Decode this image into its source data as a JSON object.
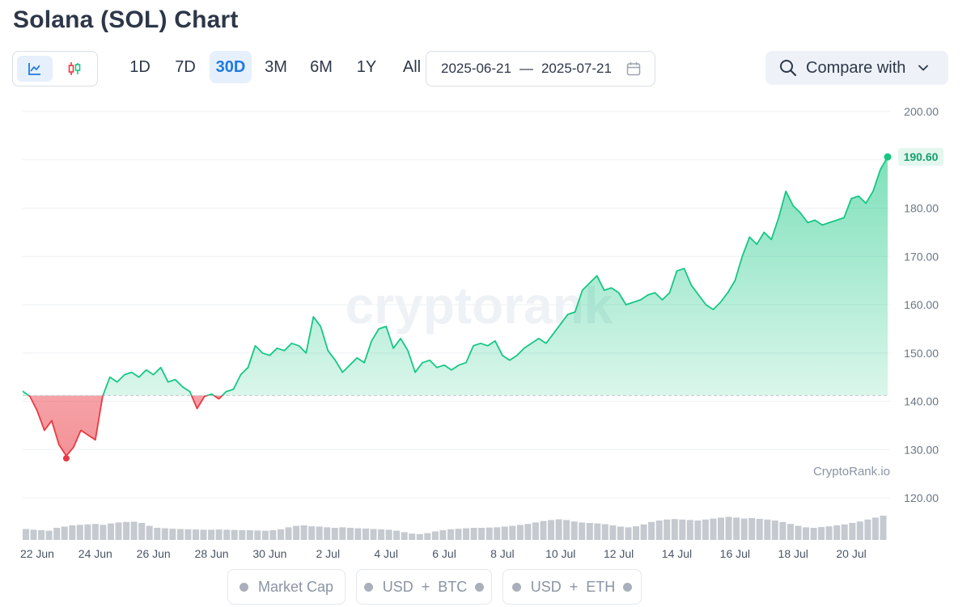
{
  "page": {
    "title": "Solana (SOL) Chart"
  },
  "toolbar": {
    "chart_types": [
      {
        "icon": "line-chart-icon",
        "active": true
      },
      {
        "icon": "candlestick-icon",
        "active": false
      }
    ],
    "ranges": [
      "1D",
      "7D",
      "30D",
      "3M",
      "6M",
      "1Y",
      "All"
    ],
    "active_range": "30D",
    "date_from": "2025-06-21",
    "date_separator": "—",
    "date_to": "2025-07-21",
    "compare_label": "Compare with"
  },
  "colors": {
    "up": "#16c784",
    "down": "#ea3943",
    "accent": "#1f7ae0",
    "volume": "#c5c9d0"
  },
  "watermark": "cryptorank",
  "source_label": "CryptoRank.io",
  "legend": {
    "market_cap": "Market Cap",
    "usd": "USD",
    "plus": "+",
    "btc": "BTC",
    "eth": "ETH"
  },
  "chart_data": {
    "type": "area",
    "title": "Solana (SOL) Chart",
    "ylim": [
      120,
      200
    ],
    "y_ticks": [
      "200.00",
      "190.00",
      "180.00",
      "170.00",
      "160.00",
      "150.00",
      "140.00",
      "130.00",
      "120.00"
    ],
    "x_ticks": [
      "22 Jun",
      "24 Jun",
      "26 Jun",
      "28 Jun",
      "30 Jun",
      "2 Jul",
      "4 Jul",
      "6 Jul",
      "8 Jul",
      "10 Jul",
      "12 Jul",
      "14 Jul",
      "16 Jul",
      "18 Jul",
      "20 Jul"
    ],
    "baseline": 141.2,
    "last_value": 190.6,
    "last_label": "190.60",
    "low_value": 128.7,
    "series": [
      {
        "values": [
          {
            "x": "2025-06-21 12:00",
            "y": 142.1
          },
          {
            "x": "2025-06-21 18:00",
            "y": 141.0
          },
          {
            "x": "2025-06-22 00:00",
            "y": 138.0
          },
          {
            "x": "2025-06-22 06:00",
            "y": 134.0
          },
          {
            "x": "2025-06-22 12:00",
            "y": 136.0
          },
          {
            "x": "2025-06-22 18:00",
            "y": 131.0
          },
          {
            "x": "2025-06-23 00:00",
            "y": 128.7
          },
          {
            "x": "2025-06-23 06:00",
            "y": 130.5
          },
          {
            "x": "2025-06-23 12:00",
            "y": 134.0
          },
          {
            "x": "2025-06-23 18:00",
            "y": 133.0
          },
          {
            "x": "2025-06-24 00:00",
            "y": 132.0
          },
          {
            "x": "2025-06-24 06:00",
            "y": 141.0
          },
          {
            "x": "2025-06-24 12:00",
            "y": 145.0
          },
          {
            "x": "2025-06-24 18:00",
            "y": 144.0
          },
          {
            "x": "2025-06-25 00:00",
            "y": 145.5
          },
          {
            "x": "2025-06-25 06:00",
            "y": 146.0
          },
          {
            "x": "2025-06-25 12:00",
            "y": 145.0
          },
          {
            "x": "2025-06-25 18:00",
            "y": 146.5
          },
          {
            "x": "2025-06-26 00:00",
            "y": 145.5
          },
          {
            "x": "2025-06-26 06:00",
            "y": 147.0
          },
          {
            "x": "2025-06-26 12:00",
            "y": 144.0
          },
          {
            "x": "2025-06-26 18:00",
            "y": 144.5
          },
          {
            "x": "2025-06-27 00:00",
            "y": 143.0
          },
          {
            "x": "2025-06-27 06:00",
            "y": 142.0
          },
          {
            "x": "2025-06-27 12:00",
            "y": 138.5
          },
          {
            "x": "2025-06-27 18:00",
            "y": 141.0
          },
          {
            "x": "2025-06-28 00:00",
            "y": 141.5
          },
          {
            "x": "2025-06-28 06:00",
            "y": 140.5
          },
          {
            "x": "2025-06-28 12:00",
            "y": 142.0
          },
          {
            "x": "2025-06-28 18:00",
            "y": 142.5
          },
          {
            "x": "2025-06-29 00:00",
            "y": 145.5
          },
          {
            "x": "2025-06-29 06:00",
            "y": 147.0
          },
          {
            "x": "2025-06-29 12:00",
            "y": 151.5
          },
          {
            "x": "2025-06-29 18:00",
            "y": 150.0
          },
          {
            "x": "2025-06-30 00:00",
            "y": 149.5
          },
          {
            "x": "2025-06-30 06:00",
            "y": 151.0
          },
          {
            "x": "2025-06-30 12:00",
            "y": 150.5
          },
          {
            "x": "2025-06-30 18:00",
            "y": 152.0
          },
          {
            "x": "2025-07-01 00:00",
            "y": 151.5
          },
          {
            "x": "2025-07-01 06:00",
            "y": 150.0
          },
          {
            "x": "2025-07-01 12:00",
            "y": 157.5
          },
          {
            "x": "2025-07-01 18:00",
            "y": 155.5
          },
          {
            "x": "2025-07-02 00:00",
            "y": 150.5
          },
          {
            "x": "2025-07-02 06:00",
            "y": 148.5
          },
          {
            "x": "2025-07-02 12:00",
            "y": 146.0
          },
          {
            "x": "2025-07-02 18:00",
            "y": 147.5
          },
          {
            "x": "2025-07-03 00:00",
            "y": 149.0
          },
          {
            "x": "2025-07-03 06:00",
            "y": 148.0
          },
          {
            "x": "2025-07-03 12:00",
            "y": 152.5
          },
          {
            "x": "2025-07-03 18:00",
            "y": 155.0
          },
          {
            "x": "2025-07-04 00:00",
            "y": 155.5
          },
          {
            "x": "2025-07-04 06:00",
            "y": 151.0
          },
          {
            "x": "2025-07-04 12:00",
            "y": 153.0
          },
          {
            "x": "2025-07-04 18:00",
            "y": 150.5
          },
          {
            "x": "2025-07-05 00:00",
            "y": 146.0
          },
          {
            "x": "2025-07-05 06:00",
            "y": 148.0
          },
          {
            "x": "2025-07-05 12:00",
            "y": 148.5
          },
          {
            "x": "2025-07-05 18:00",
            "y": 147.0
          },
          {
            "x": "2025-07-06 00:00",
            "y": 147.5
          },
          {
            "x": "2025-07-06 06:00",
            "y": 146.5
          },
          {
            "x": "2025-07-06 12:00",
            "y": 147.5
          },
          {
            "x": "2025-07-06 18:00",
            "y": 148.0
          },
          {
            "x": "2025-07-07 00:00",
            "y": 151.5
          },
          {
            "x": "2025-07-07 06:00",
            "y": 152.0
          },
          {
            "x": "2025-07-07 12:00",
            "y": 151.5
          },
          {
            "x": "2025-07-07 18:00",
            "y": 152.5
          },
          {
            "x": "2025-07-08 00:00",
            "y": 149.5
          },
          {
            "x": "2025-07-08 06:00",
            "y": 148.5
          },
          {
            "x": "2025-07-08 12:00",
            "y": 149.5
          },
          {
            "x": "2025-07-08 18:00",
            "y": 151.0
          },
          {
            "x": "2025-07-09 00:00",
            "y": 152.0
          },
          {
            "x": "2025-07-09 06:00",
            "y": 153.0
          },
          {
            "x": "2025-07-09 12:00",
            "y": 152.0
          },
          {
            "x": "2025-07-09 18:00",
            "y": 154.0
          },
          {
            "x": "2025-07-10 00:00",
            "y": 156.0
          },
          {
            "x": "2025-07-10 06:00",
            "y": 158.0
          },
          {
            "x": "2025-07-10 12:00",
            "y": 158.5
          },
          {
            "x": "2025-07-10 18:00",
            "y": 163.0
          },
          {
            "x": "2025-07-11 00:00",
            "y": 164.5
          },
          {
            "x": "2025-07-11 06:00",
            "y": 166.0
          },
          {
            "x": "2025-07-11 12:00",
            "y": 163.0
          },
          {
            "x": "2025-07-11 18:00",
            "y": 163.5
          },
          {
            "x": "2025-07-12 00:00",
            "y": 162.5
          },
          {
            "x": "2025-07-12 06:00",
            "y": 160.0
          },
          {
            "x": "2025-07-12 12:00",
            "y": 160.5
          },
          {
            "x": "2025-07-12 18:00",
            "y": 161.0
          },
          {
            "x": "2025-07-13 00:00",
            "y": 162.0
          },
          {
            "x": "2025-07-13 06:00",
            "y": 162.5
          },
          {
            "x": "2025-07-13 12:00",
            "y": 161.0
          },
          {
            "x": "2025-07-13 18:00",
            "y": 162.5
          },
          {
            "x": "2025-07-14 00:00",
            "y": 167.0
          },
          {
            "x": "2025-07-14 06:00",
            "y": 167.5
          },
          {
            "x": "2025-07-14 12:00",
            "y": 164.0
          },
          {
            "x": "2025-07-14 18:00",
            "y": 162.0
          },
          {
            "x": "2025-07-15 00:00",
            "y": 160.0
          },
          {
            "x": "2025-07-15 06:00",
            "y": 159.0
          },
          {
            "x": "2025-07-15 12:00",
            "y": 160.5
          },
          {
            "x": "2025-07-15 18:00",
            "y": 162.5
          },
          {
            "x": "2025-07-16 00:00",
            "y": 165.0
          },
          {
            "x": "2025-07-16 06:00",
            "y": 170.0
          },
          {
            "x": "2025-07-16 12:00",
            "y": 174.0
          },
          {
            "x": "2025-07-16 18:00",
            "y": 172.5
          },
          {
            "x": "2025-07-17 00:00",
            "y": 175.0
          },
          {
            "x": "2025-07-17 06:00",
            "y": 173.5
          },
          {
            "x": "2025-07-17 12:00",
            "y": 178.0
          },
          {
            "x": "2025-07-17 18:00",
            "y": 183.5
          },
          {
            "x": "2025-07-18 00:00",
            "y": 180.5
          },
          {
            "x": "2025-07-18 06:00",
            "y": 179.0
          },
          {
            "x": "2025-07-18 12:00",
            "y": 177.0
          },
          {
            "x": "2025-07-18 18:00",
            "y": 177.5
          },
          {
            "x": "2025-07-19 00:00",
            "y": 176.5
          },
          {
            "x": "2025-07-19 06:00",
            "y": 177.0
          },
          {
            "x": "2025-07-19 12:00",
            "y": 177.5
          },
          {
            "x": "2025-07-19 18:00",
            "y": 178.0
          },
          {
            "x": "2025-07-20 00:00",
            "y": 182.0
          },
          {
            "x": "2025-07-20 06:00",
            "y": 182.5
          },
          {
            "x": "2025-07-20 12:00",
            "y": 181.0
          },
          {
            "x": "2025-07-20 18:00",
            "y": 183.5
          },
          {
            "x": "2025-07-21 00:00",
            "y": 188.0
          },
          {
            "x": "2025-07-21 06:00",
            "y": 190.6
          }
        ]
      }
    ],
    "volume": {
      "x_start": "2025-06-21 12:00",
      "x_end": "2025-07-21 06:00",
      "relative_heights": [
        0.45,
        0.42,
        0.4,
        0.38,
        0.5,
        0.55,
        0.6,
        0.62,
        0.64,
        0.66,
        0.62,
        0.68,
        0.72,
        0.74,
        0.75,
        0.7,
        0.58,
        0.5,
        0.48,
        0.46,
        0.45,
        0.44,
        0.43,
        0.42,
        0.42,
        0.43,
        0.42,
        0.41,
        0.4,
        0.4,
        0.39,
        0.38,
        0.4,
        0.44,
        0.52,
        0.58,
        0.6,
        0.56,
        0.55,
        0.52,
        0.5,
        0.52,
        0.5,
        0.48,
        0.47,
        0.45,
        0.44,
        0.42,
        0.38,
        0.32,
        0.26,
        0.24,
        0.28,
        0.35,
        0.4,
        0.44,
        0.46,
        0.48,
        0.5,
        0.5,
        0.51,
        0.52,
        0.55,
        0.58,
        0.62,
        0.66,
        0.72,
        0.78,
        0.82,
        0.85,
        0.82,
        0.76,
        0.72,
        0.7,
        0.68,
        0.65,
        0.6,
        0.55,
        0.52,
        0.56,
        0.64,
        0.74,
        0.8,
        0.84,
        0.86,
        0.84,
        0.82,
        0.8,
        0.84,
        0.88,
        0.92,
        0.95,
        0.92,
        0.88,
        0.9,
        0.87,
        0.84,
        0.8,
        0.74,
        0.66,
        0.58,
        0.52,
        0.5,
        0.53,
        0.56,
        0.6,
        0.64,
        0.7,
        0.76,
        0.84,
        0.92,
        1.0
      ]
    }
  }
}
